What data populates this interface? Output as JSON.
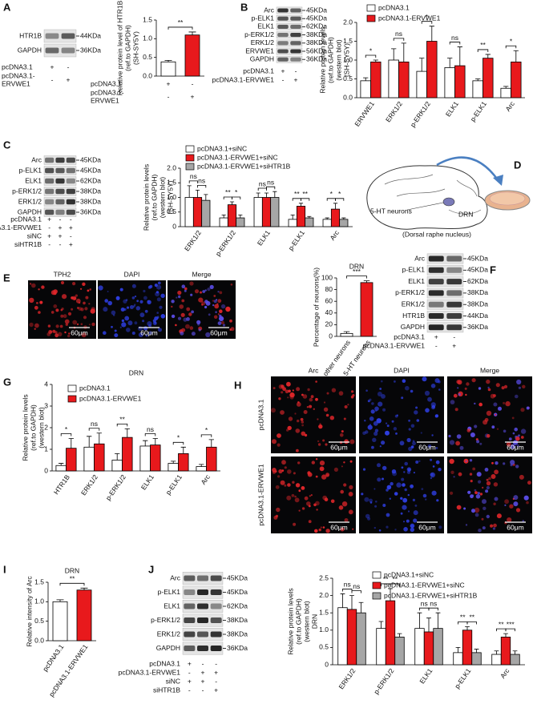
{
  "panel_labels": [
    "A",
    "B",
    "C",
    "D",
    "E",
    "F",
    "G",
    "H",
    "I",
    "J"
  ],
  "chart_data": [
    {
      "type": "bar",
      "ylabel": [
        "Relative protein level of HTR1B",
        "(ref.to GAPDH)",
        "(SH-SY5Y)"
      ],
      "values": [
        0.38,
        1.1
      ],
      "errors": [
        0.04,
        0.08
      ],
      "colors": [
        "#ffffff",
        "#e8191c"
      ],
      "conditions": [
        {
          "label": [
            "pcDNA3.1"
          ],
          "signs": [
            "+",
            "-"
          ]
        },
        {
          "label": [
            "pcDNA3.1-",
            "ERVWE1"
          ],
          "signs": [
            "-",
            "+"
          ]
        }
      ],
      "significance": [
        "**"
      ],
      "ylim": [
        0,
        1.5
      ],
      "yticks": [
        {
          "value": 0,
          "label": "0.0"
        },
        {
          "value": 0.5,
          "label": "0.5"
        },
        {
          "value": 1,
          "label": "1.0"
        },
        {
          "value": 1.5,
          "label": "1.5"
        }
      ]
    },
    {
      "type": "bar",
      "ylabel": [
        "Relative protein levels",
        "(ref.to GAPDH)",
        "(western blot)",
        "(SH-SY5Y)"
      ],
      "categories": [
        "ERVWE1",
        "ERK1/2",
        "p-ERK1/2",
        "ELK1",
        "p-ELK1",
        "Arc"
      ],
      "series": [
        {
          "name": "pcDNA3.1",
          "color": "#ffffff",
          "values": [
            0.45,
            1.0,
            0.7,
            0.8,
            0.45,
            0.25
          ],
          "errors": [
            0.08,
            0.3,
            0.35,
            0.25,
            0.05,
            0.05
          ]
        },
        {
          "name": "pcDNA3.1-ERVWE1",
          "color": "#e8191c",
          "values": [
            0.95,
            0.95,
            1.5,
            0.85,
            1.05,
            0.95
          ],
          "errors": [
            0.05,
            0.5,
            0.4,
            0.5,
            0.1,
            0.3
          ]
        }
      ],
      "significance": [
        [
          "*"
        ],
        [
          "ns"
        ],
        [
          "*"
        ],
        [
          "ns"
        ],
        [
          "**"
        ],
        [
          "*"
        ]
      ],
      "ylim": [
        0,
        2
      ],
      "yticks": [
        {
          "value": 0,
          "label": "0.0"
        },
        {
          "value": 0.5,
          "label": "0.5"
        },
        {
          "value": 1,
          "label": "1.0"
        },
        {
          "value": 1.5,
          "label": "1.5"
        },
        {
          "value": 2,
          "label": "2.0"
        }
      ]
    },
    {
      "type": "bar",
      "ylabel": [
        "Relative protein levels",
        "(ref.to GAPDH)",
        "(western blot)",
        "(SH-SY5Y)"
      ],
      "categories": [
        "ERK1/2",
        "p-ERK1/2",
        "ELK1",
        "p-ELK1",
        "Arc"
      ],
      "series": [
        {
          "name": "pcDNA3.1+siNC",
          "color": "#ffffff",
          "values": [
            1.0,
            0.3,
            1.0,
            0.25,
            0.25
          ],
          "errors": [
            0.4,
            0.1,
            0.15,
            0.15,
            0.05
          ]
        },
        {
          "name": "pcDNA3.1-ERVWE1+siNC",
          "color": "#e8191c",
          "values": [
            1.0,
            0.75,
            1.0,
            0.7,
            0.6
          ],
          "errors": [
            0.25,
            0.1,
            0.15,
            0.1,
            0.2
          ]
        },
        {
          "name": "pcDNA3.1-ERVWE1+siHTR1B",
          "color": "#a6a6a6",
          "values": [
            0.9,
            0.3,
            1.0,
            0.3,
            0.25
          ],
          "errors": [
            0.2,
            0.1,
            0.2,
            0.05,
            0.05
          ]
        }
      ],
      "significance": [
        [
          "ns",
          "ns"
        ],
        [
          "**",
          "*"
        ],
        [
          "ns",
          "ns"
        ],
        [
          "**",
          "**"
        ],
        [
          "*",
          "*"
        ]
      ],
      "ylim": [
        0,
        2
      ],
      "yticks": [
        0,
        {
          "value": 0.5,
          "label": "0.5"
        },
        {
          "value": 1,
          "label": "1.0"
        },
        {
          "value": 1.5,
          "label": "1.5"
        },
        {
          "value": 2,
          "label": "2.0"
        }
      ]
    },
    {
      "type": "bar",
      "title": "DRN",
      "ylabel": [
        "Percentage of neurons(%)"
      ],
      "categories": [
        "other neurons",
        "5-HT neurons"
      ],
      "values": [
        5,
        92
      ],
      "errors": [
        3,
        3
      ],
      "colors": [
        "#ffffff",
        "#e8191c"
      ],
      "significance": [
        "***"
      ],
      "ylim": [
        0,
        100
      ],
      "yticks": [
        0,
        20,
        40,
        60,
        80,
        100
      ]
    },
    {
      "type": "bar",
      "title": "DRN",
      "ylabel": [
        "Relative protein levels",
        "(ref.to GAPDH)",
        "(western blot)"
      ],
      "categories": [
        "HTR1B",
        "ERK1/2",
        "p-ERK1/2",
        "ELK1",
        "p-ELK1",
        "Arc"
      ],
      "series": [
        {
          "name": "pcDNA3.1",
          "color": "#ffffff",
          "values": [
            0.25,
            1.1,
            0.5,
            1.15,
            0.35,
            0.2
          ],
          "errors": [
            0.1,
            0.5,
            0.3,
            0.25,
            0.1,
            0.1
          ]
        },
        {
          "name": "pcDNA3.1-ERVWE1",
          "color": "#e8191c",
          "values": [
            1.05,
            1.25,
            1.55,
            1.2,
            0.8,
            1.1
          ],
          "errors": [
            0.45,
            0.5,
            0.4,
            0.3,
            0.3,
            0.35
          ]
        }
      ],
      "significance": [
        [
          "*"
        ],
        [
          "ns"
        ],
        [
          "**"
        ],
        [
          "ns"
        ],
        [
          "*"
        ],
        [
          "*"
        ]
      ],
      "ylim": [
        0,
        4
      ],
      "yticks": [
        0,
        1,
        2,
        3,
        4
      ]
    },
    {
      "type": "bar",
      "title": "DRN",
      "ylabel": [
        "Relative intensity of Arc"
      ],
      "categories": [
        "pcDNA3.1",
        "pcDNA3.1-ERVWE1"
      ],
      "values": [
        1.0,
        1.3
      ],
      "errors": [
        0.05,
        0.05
      ],
      "colors": [
        "#ffffff",
        "#e8191c"
      ],
      "significance": [
        "**"
      ],
      "ylim": [
        0,
        1.5
      ],
      "yticks": [
        {
          "value": 0,
          "label": "0.0"
        },
        {
          "value": 0.5,
          "label": "0.5"
        },
        {
          "value": 1,
          "label": "1.0"
        },
        {
          "value": 1.5,
          "label": "1.5"
        }
      ]
    },
    {
      "type": "bar",
      "ylabel": [
        "Relative protein levels",
        "(ref.to GAPDH)",
        "(western blot)",
        "DRN"
      ],
      "categories": [
        "ERK1/2",
        "p-ERK1/2",
        "ELK1",
        "p-ELK1",
        "Arc"
      ],
      "series": [
        {
          "name": "pcDNA3.1+siNC",
          "color": "#ffffff",
          "values": [
            1.65,
            1.05,
            1.05,
            0.35,
            0.3
          ],
          "errors": [
            0.4,
            0.2,
            0.45,
            0.15,
            0.1
          ]
        },
        {
          "name": "pcDNA3.1-ERVWE1+siNC",
          "color": "#e8191c",
          "values": [
            1.6,
            1.85,
            0.95,
            1.0,
            0.8
          ],
          "errors": [
            0.4,
            0.35,
            0.4,
            0.1,
            0.1
          ]
        },
        {
          "name": "pcDNA3.1-ERVWE1+siHTR1B",
          "color": "#a6a6a6",
          "values": [
            1.5,
            0.8,
            1.05,
            0.35,
            0.3
          ],
          "errors": [
            0.3,
            0.1,
            0.45,
            0.1,
            0.1
          ]
        }
      ],
      "significance": [
        [
          "ns",
          "ns"
        ],
        [
          "**",
          "**"
        ],
        [
          "ns",
          "ns"
        ],
        [
          "**",
          "**"
        ],
        [
          "**",
          "***"
        ]
      ],
      "ylim": [
        0,
        2.5
      ],
      "yticks": [
        0,
        {
          "value": 0.5,
          "label": "0.5"
        },
        {
          "value": 1,
          "label": "1.0"
        },
        {
          "value": 1.5,
          "label": "1.5"
        },
        {
          "value": 2,
          "label": "2.0"
        },
        {
          "value": 2.5,
          "label": "2.5"
        }
      ]
    }
  ],
  "blots": [
    {
      "bands": [
        {
          "name": "HTR1B",
          "size": "44KDa"
        },
        {
          "name": "GAPDH",
          "size": "36KDa"
        }
      ],
      "conditions": [
        {
          "label": [
            "pcDNA3.1"
          ],
          "signs": [
            "+",
            "-"
          ]
        },
        {
          "label": [
            "pcDNA3.1-",
            "ERVWE1"
          ],
          "signs": [
            "-",
            "+"
          ]
        }
      ]
    },
    {
      "bands": [
        {
          "name": "Arc",
          "size": "45KDa"
        },
        {
          "name": "p-ELK1",
          "size": "45KDa"
        },
        {
          "name": "ELK1",
          "size": "62KDa"
        },
        {
          "name": "p-ERK1/2",
          "size": "38KDa"
        },
        {
          "name": "ERK1/2",
          "size": "38KDa"
        },
        {
          "name": "ERVWE1",
          "size": "56KDa"
        },
        {
          "name": "GAPDH",
          "size": "36KDa"
        }
      ],
      "conditions": [
        {
          "label": [
            "pcDNA3.1"
          ],
          "signs": [
            "+",
            "-"
          ]
        },
        {
          "label": [
            "pcDNA3.1-ERVWE1"
          ],
          "signs": [
            "-",
            "+"
          ]
        }
      ]
    },
    {
      "bands": [
        {
          "name": "Arc",
          "size": "45KDa"
        },
        {
          "name": "p-ELK1",
          "size": "45KDa"
        },
        {
          "name": "ELK1",
          "size": "62KDa"
        },
        {
          "name": "p-ERK1/2",
          "size": "38KDa"
        },
        {
          "name": "ERK1/2",
          "size": "38KDa"
        },
        {
          "name": "GAPDH",
          "size": "36KDa"
        }
      ],
      "conditions": [
        {
          "label": [
            "pcDNA3.1"
          ],
          "signs": [
            "+",
            "-",
            "-"
          ]
        },
        {
          "label": [
            "pcDNA3.1-ERVWE1"
          ],
          "signs": [
            "-",
            "+",
            "+"
          ]
        },
        {
          "label": [
            "siNC"
          ],
          "signs": [
            "+",
            "+",
            "-"
          ]
        },
        {
          "label": [
            "siHTR1B"
          ],
          "signs": [
            "-",
            "-",
            "+"
          ]
        }
      ]
    },
    {
      "bands": [
        {
          "name": "Arc",
          "size": "45KDa"
        },
        {
          "name": "p-ELK1",
          "size": "45KDa"
        },
        {
          "name": "ELK1",
          "size": "62KDa"
        },
        {
          "name": "p-ERK1/2",
          "size": "38KDa"
        },
        {
          "name": "ERK1/2",
          "size": "38KDa"
        },
        {
          "name": "HTR1B",
          "size": "44KDa"
        },
        {
          "name": "GAPDH",
          "size": "36KDa"
        }
      ],
      "conditions": [
        {
          "label": [
            "pcDNA3.1"
          ],
          "signs": [
            "+",
            "-"
          ]
        },
        {
          "label": [
            "pcDNA3.1-ERVWE1"
          ],
          "signs": [
            "-",
            "+"
          ]
        }
      ]
    },
    {
      "bands": [
        {
          "name": "Arc",
          "size": "45KDa"
        },
        {
          "name": "p-ELK1",
          "size": "45KDa"
        },
        {
          "name": "ELK1",
          "size": "62KDa"
        },
        {
          "name": "p-ERK1/2",
          "size": "38KDa"
        },
        {
          "name": "ERK1/2",
          "size": "38KDa"
        },
        {
          "name": "GAPDH",
          "size": "36KDa"
        }
      ],
      "conditions": [
        {
          "label": [
            "pcDNA3.1"
          ],
          "signs": [
            "+",
            "-",
            "-"
          ]
        },
        {
          "label": [
            "pcDNA3.1-ERVWE1"
          ],
          "signs": [
            "-",
            "+",
            "+"
          ]
        },
        {
          "label": [
            "siNC"
          ],
          "signs": [
            "+",
            "+",
            "-"
          ]
        },
        {
          "label": [
            "siHTR1B"
          ],
          "signs": [
            "-",
            "-",
            "+"
          ]
        }
      ]
    }
  ],
  "micrographs": [
    {
      "columns": [
        "TPH2",
        "DAPI",
        "Merge"
      ],
      "scale_bars": [
        "60μm",
        "60μm",
        "60μm"
      ]
    },
    {
      "columns": [
        "Arc",
        "DAPI",
        "Merge"
      ],
      "rows": [
        "pcDNA3.1",
        "pcDNA3.1-ERVWE1"
      ],
      "scale_bars": [
        [
          "60μm",
          "60μm",
          "60μm"
        ],
        [
          "60μm",
          "60μm",
          "60μm"
        ]
      ]
    }
  ],
  "diagram": {
    "labels": [
      "5-HT neurons",
      "DRN",
      "(Dorsal raphe nucleus)"
    ]
  }
}
